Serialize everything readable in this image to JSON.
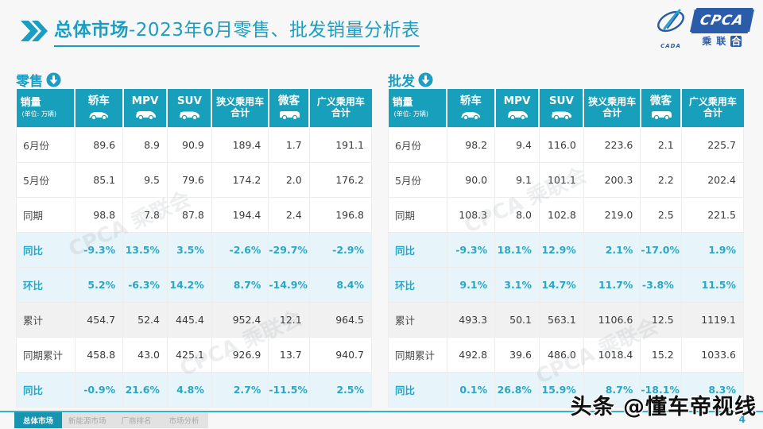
{
  "header": {
    "title_section": "总体市场",
    "title_rest": "-2023年6月零售、批发销量分析表",
    "logo": {
      "cpca": "CPCA",
      "sub_chars": [
        "乘",
        "联",
        "合"
      ],
      "small": "CADA"
    }
  },
  "columns": [
    {
      "label": "销量",
      "sub": "(单位: 万辆)",
      "icon": null,
      "label2": null
    },
    {
      "label": "轿车",
      "sub": null,
      "icon": "sedan-icon",
      "label2": null
    },
    {
      "label": "MPV",
      "sub": null,
      "icon": "mpv-icon",
      "label2": null
    },
    {
      "label": "SUV",
      "sub": null,
      "icon": "suv-icon",
      "label2": null
    },
    {
      "label": "狭义乘用车",
      "sub": null,
      "icon": null,
      "label2": "合计"
    },
    {
      "label": "微客",
      "sub": null,
      "icon": "van-icon",
      "label2": null
    },
    {
      "label": "广义乘用车",
      "sub": null,
      "icon": null,
      "label2": "合计"
    }
  ],
  "tables": [
    {
      "title": "零售",
      "rows": [
        {
          "label": "6月份",
          "type": "normal",
          "values": [
            "89.6",
            "8.9",
            "90.9",
            "189.4",
            "1.7",
            "191.1"
          ]
        },
        {
          "label": "5月份",
          "type": "normal",
          "values": [
            "85.1",
            "9.5",
            "79.6",
            "174.2",
            "2.0",
            "176.2"
          ]
        },
        {
          "label": "同期",
          "type": "normal",
          "values": [
            "98.8",
            "7.8",
            "87.8",
            "194.4",
            "2.4",
            "196.8"
          ]
        },
        {
          "label": "同比",
          "type": "percent",
          "values": [
            "-9.3%",
            "13.5%",
            "3.5%",
            "-2.6%",
            "-29.7%",
            "-2.9%"
          ]
        },
        {
          "label": "环比",
          "type": "percent",
          "values": [
            "5.2%",
            "-6.3%",
            "14.2%",
            "8.7%",
            "-14.9%",
            "8.4%"
          ]
        },
        {
          "label": "累计",
          "type": "gray",
          "values": [
            "454.7",
            "52.4",
            "445.4",
            "952.4",
            "12.1",
            "964.5"
          ]
        },
        {
          "label": "同期累计",
          "type": "normal",
          "values": [
            "458.8",
            "43.0",
            "425.1",
            "926.9",
            "13.7",
            "940.7"
          ]
        },
        {
          "label": "同比",
          "type": "percent",
          "values": [
            "-0.9%",
            "21.6%",
            "4.8%",
            "2.7%",
            "-11.5%",
            "2.5%"
          ]
        }
      ]
    },
    {
      "title": "批发",
      "rows": [
        {
          "label": "6月份",
          "type": "normal",
          "values": [
            "98.2",
            "9.4",
            "116.0",
            "223.6",
            "2.1",
            "225.7"
          ]
        },
        {
          "label": "5月份",
          "type": "normal",
          "values": [
            "90.0",
            "9.1",
            "101.1",
            "200.3",
            "2.2",
            "202.4"
          ]
        },
        {
          "label": "同期",
          "type": "normal",
          "values": [
            "108.3",
            "8.0",
            "102.8",
            "219.0",
            "2.5",
            "221.5"
          ]
        },
        {
          "label": "同比",
          "type": "percent",
          "values": [
            "-9.3%",
            "18.1%",
            "12.9%",
            "2.1%",
            "-17.0%",
            "1.9%"
          ]
        },
        {
          "label": "环比",
          "type": "percent",
          "values": [
            "9.1%",
            "3.1%",
            "14.7%",
            "11.7%",
            "-3.8%",
            "11.5%"
          ]
        },
        {
          "label": "累计",
          "type": "gray",
          "values": [
            "493.3",
            "50.1",
            "563.1",
            "1106.6",
            "12.5",
            "1119.1"
          ]
        },
        {
          "label": "同期累计",
          "type": "normal",
          "values": [
            "492.8",
            "39.6",
            "486.0",
            "1018.4",
            "15.2",
            "1033.6"
          ]
        },
        {
          "label": "同比",
          "type": "percent",
          "values": [
            "0.1%",
            "26.8%",
            "15.9%",
            "8.7%",
            "-18.1%",
            "8.3%"
          ]
        }
      ]
    }
  ],
  "footer": {
    "tabs": [
      {
        "label": "总体市场",
        "active": true
      },
      {
        "label": "新能源市场",
        "active": false
      },
      {
        "label": "厂商排名",
        "active": false
      },
      {
        "label": "市场分析",
        "active": false
      }
    ],
    "page_number": "4",
    "watermark": "头条 @懂车帝视线",
    "table_watermark": "CPCA 乘联会"
  },
  "colors": {
    "teal_header": "#189fbb",
    "title_teal": "#1b9ec2",
    "percent_text": "#2aa6c6",
    "percent_row_bg": "#e7f5fa",
    "gray_row_bg": "#f1f1f1",
    "logo_blue": "#2a5caa"
  }
}
